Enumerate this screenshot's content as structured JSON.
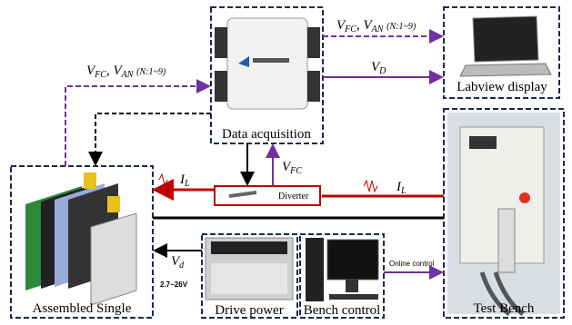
{
  "nodes": {
    "data_acquisition": "Data acquisition",
    "labview_display": "Labview display",
    "test_bench": "Test Bench",
    "bench_control": "Bench control",
    "drive_power": "Drive power",
    "assembled_single": "Assembled Single",
    "diverter": "Diverter"
  },
  "signals": {
    "to_labview": {
      "v1": "V",
      "s1": "FC",
      "sep": ",",
      "v2": "V",
      "s2": "AN",
      "note": "(N:1~9)"
    },
    "to_daq": {
      "v1": "V",
      "s1": "FC",
      "sep": ",",
      "v2": "V",
      "s2": "AN",
      "note": "(N:1~9)"
    },
    "vd_display": {
      "v": "V",
      "s": "D"
    },
    "vfc": {
      "v": "V",
      "s": "FC"
    },
    "il_bench": {
      "v": "I",
      "s": "L"
    },
    "il_stack": {
      "v": "I",
      "s": "L"
    },
    "vd_drive": {
      "v": "V",
      "s": "d"
    },
    "voltage_range": "2.7~26V",
    "online_control": "Online control"
  }
}
